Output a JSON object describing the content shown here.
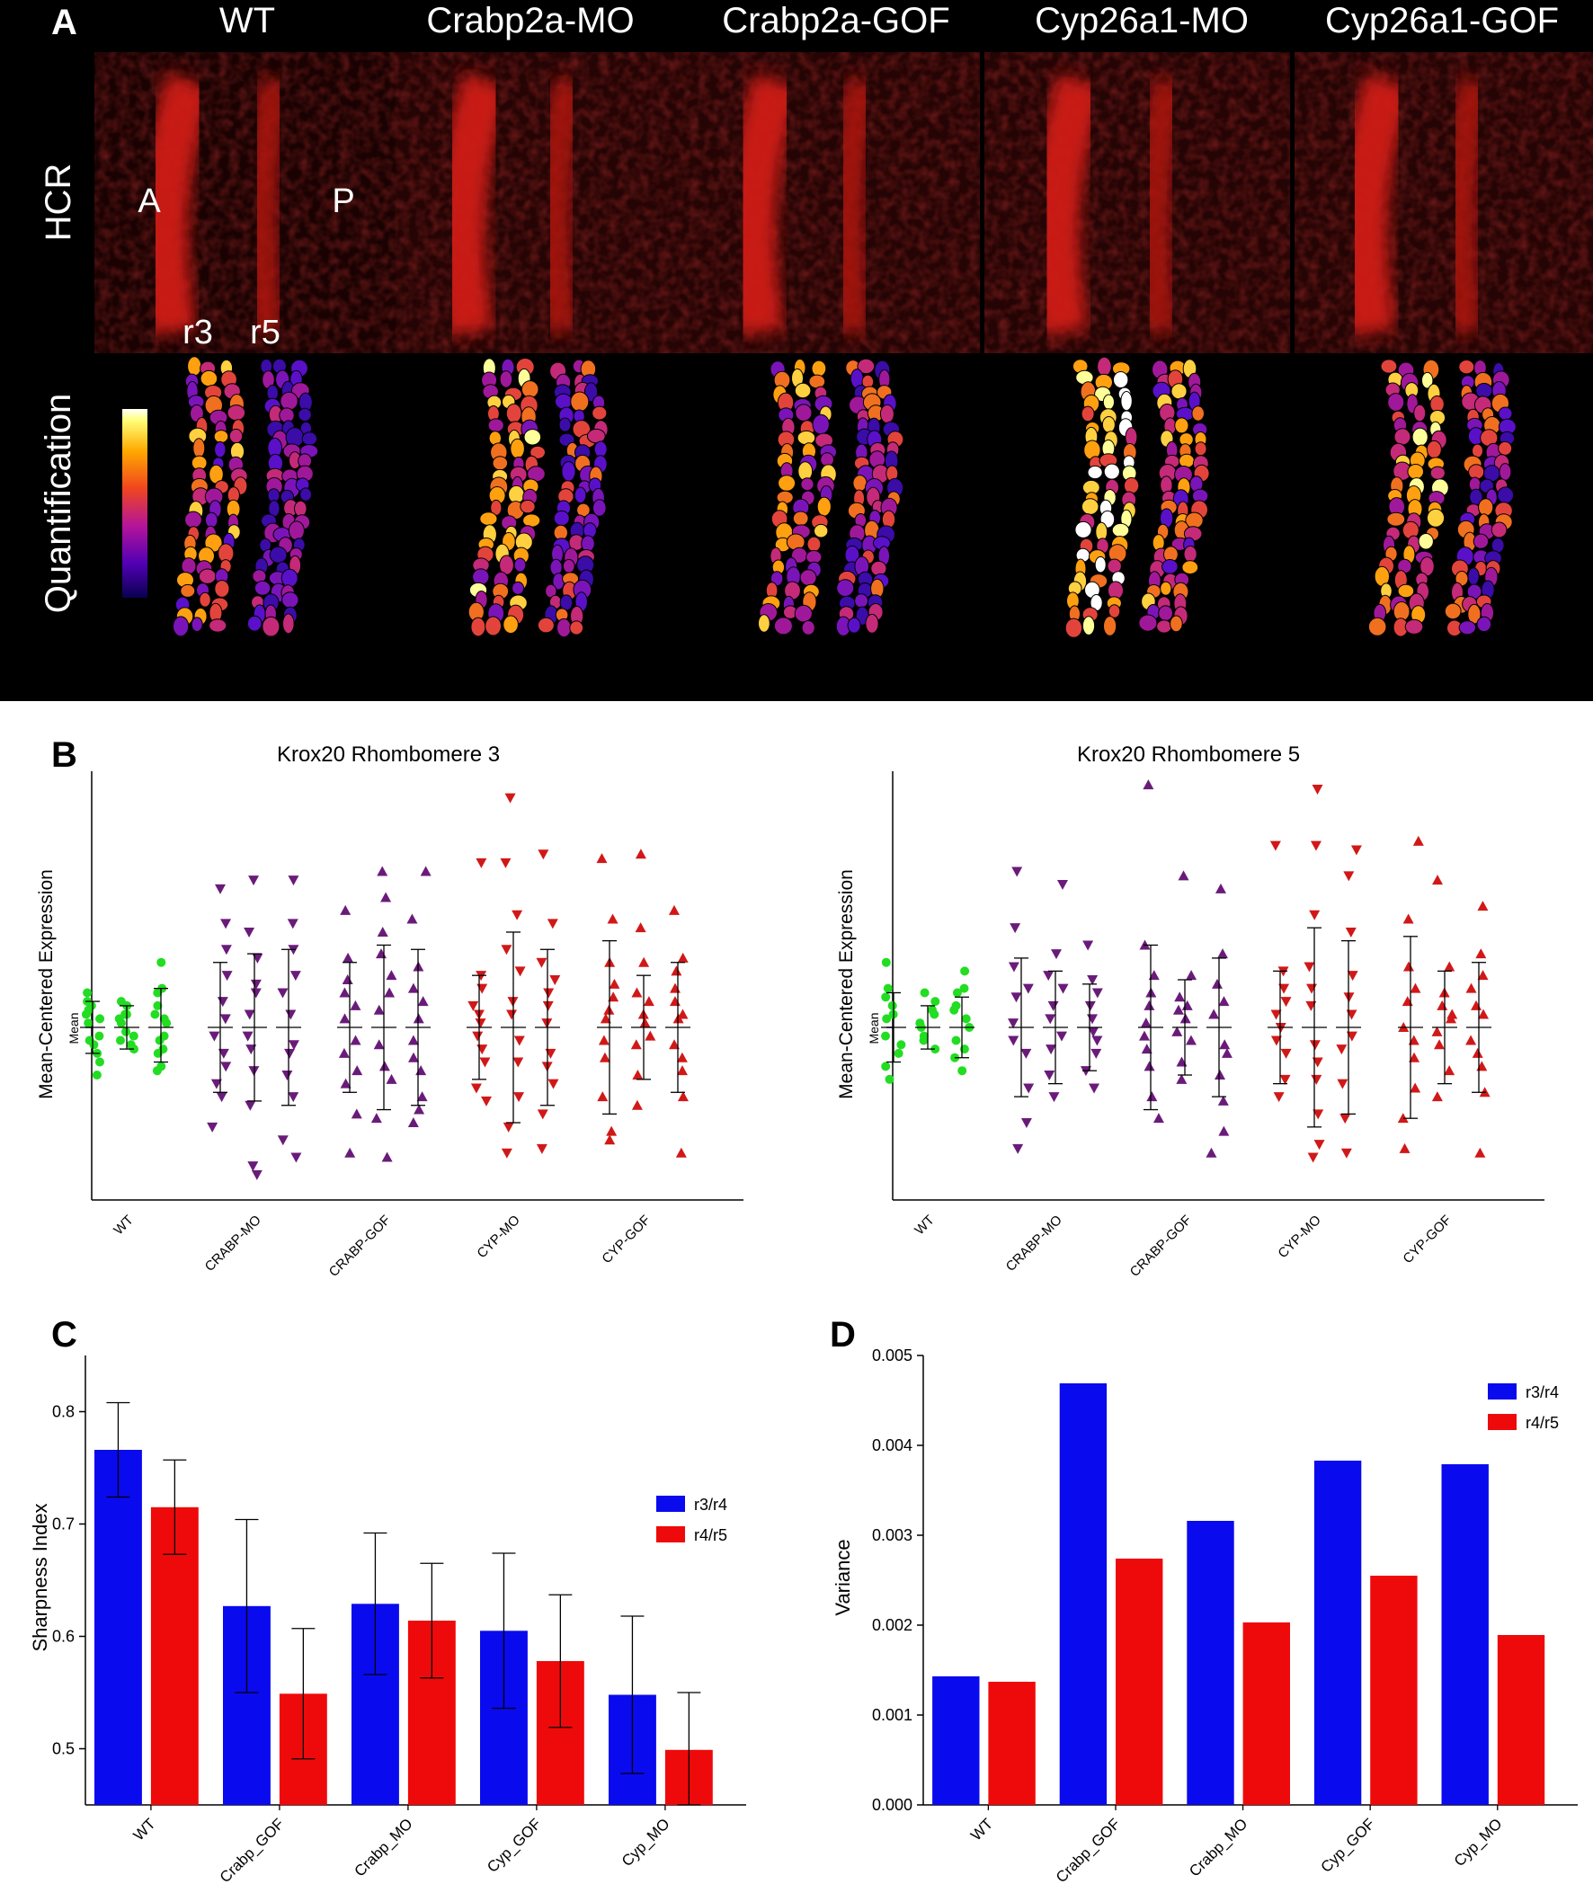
{
  "panel_a": {
    "letter": "A",
    "conditions": [
      "WT",
      "Crabp2a-MO",
      "Crabp2a-GOF",
      "Cyp26a1-MO",
      "Cyp26a1-GOF"
    ],
    "row_labels": [
      "HCR",
      "Quantification"
    ],
    "orientation": {
      "anterior": "A",
      "posterior": "P"
    },
    "rhombomere_labels": [
      "r3",
      "r5"
    ]
  },
  "panel_b": {
    "letter": "B",
    "chart_data": [
      {
        "type": "scatter",
        "title": "Krox20 Rhombomere 3",
        "ylabel": "Mean-Centered Expression",
        "ytick": "Mean",
        "categories": [
          "WT",
          "CRABP-MO",
          "CRABP-GOF",
          "CYP-MO",
          "CYP-GOF"
        ],
        "series": [
          {
            "group": "WT",
            "color": "#22dd22",
            "marker": "circle",
            "sd": [
              [
                -0.6,
                0.6
              ],
              [
                -0.5,
                0.5
              ],
              [
                -0.8,
                0.9
              ]
            ],
            "values": [
              [
                0.8,
                0.5,
                0.2,
                -0.3,
                -0.6,
                -1.1,
                0.3,
                -0.2,
                0.6,
                -0.8,
                0.1,
                -0.4,
                0.4
              ],
              [
                0.6,
                0.3,
                -0.1,
                -0.3,
                0.2,
                -0.5,
                0.5,
                -0.2,
                0.1,
                -0.4,
                0.3
              ],
              [
                1.5,
                0.8,
                0.3,
                -0.3,
                -0.9,
                -1.0,
                0.5,
                0.1,
                -0.6,
                0.9,
                -0.2,
                0.2,
                -0.5
              ]
            ]
          },
          {
            "group": "CRABP-MO",
            "color": "#6a1b7a",
            "marker": "triangle-down",
            "sd": [
              [
                -1.5,
                1.5
              ],
              [
                -1.7,
                1.7
              ],
              [
                -1.8,
                1.8
              ]
            ],
            "values": [
              [
                3.2,
                2.4,
                1.2,
                0.6,
                -0.2,
                -0.9,
                -1.6,
                -2.3,
                0.2,
                -0.6,
                1.8,
                -1.3
              ],
              [
                3.4,
                2.2,
                1.0,
                0.3,
                -0.5,
                -1.8,
                -3.2,
                -3.4,
                0.8,
                -1.0,
                1.6,
                -0.2
              ],
              [
                3.4,
                1.8,
                0.8,
                -0.4,
                -1.1,
                -2.6,
                -3.0,
                1.2,
                -0.6,
                0.3,
                -1.6,
                2.4
              ]
            ]
          },
          {
            "group": "CRABP-GOF",
            "color": "#6a1b7a",
            "marker": "triangle-up",
            "sd": [
              [
                -1.5,
                1.5
              ],
              [
                -1.9,
                1.9
              ],
              [
                -1.8,
                1.8
              ]
            ],
            "values": [
              [
                2.7,
                1.6,
                0.8,
                0.2,
                -0.6,
                -1.3,
                -2.0,
                -2.9,
                1.1,
                -0.3,
                0.5,
                -1.0
              ],
              [
                3.6,
                3.0,
                2.2,
                1.2,
                0.4,
                -0.4,
                -1.2,
                -2.1,
                -3.0,
                0.8,
                -0.9,
                1.7
              ],
              [
                3.6,
                2.5,
                1.4,
                0.6,
                -0.3,
                -1.0,
                -1.6,
                -2.2,
                0.9,
                -0.7,
                0.2,
                -1.9
              ]
            ]
          },
          {
            "group": "CYP-MO",
            "color": "#d11818",
            "marker": "triangle-down",
            "sd": [
              [
                -1.2,
                1.2
              ],
              [
                -2.2,
                2.2
              ],
              [
                -1.8,
                1.8
              ]
            ],
            "values": [
              [
                3.8,
                1.2,
                0.5,
                -0.2,
                -0.8,
                -1.4,
                -1.7,
                0.9,
                0.1,
                -0.5,
                0.3
              ],
              [
                5.3,
                3.8,
                2.6,
                1.3,
                0.3,
                -0.8,
                -1.6,
                -2.3,
                -2.9,
                0.6,
                -0.3,
                1.8
              ],
              [
                4.0,
                2.4,
                1.5,
                0.8,
                0.1,
                -0.6,
                -1.3,
                -2.0,
                -2.8,
                0.5,
                -0.9,
                1.1
              ]
            ]
          },
          {
            "group": "CYP-GOF",
            "color": "#d11818",
            "marker": "triangle-up",
            "sd": [
              [
                -2.0,
                2.0
              ],
              [
                -1.2,
                1.2
              ],
              [
                -1.5,
                1.5
              ]
            ],
            "values": [
              [
                3.9,
                2.5,
                1.5,
                0.7,
                0.2,
                -0.7,
                -1.6,
                -2.4,
                -2.6,
                0.4,
                -0.3,
                1.0
              ],
              [
                4.0,
                2.3,
                1.5,
                0.8,
                0.3,
                -0.4,
                -1.1,
                -1.8,
                0.6,
                -0.2,
                0.1
              ],
              [
                2.7,
                1.6,
                0.9,
                0.3,
                -0.4,
                -1.0,
                -1.6,
                -2.9,
                0.6,
                -0.7,
                0.2,
                1.3
              ]
            ]
          }
        ]
      },
      {
        "type": "scatter",
        "title": "Krox20 Rhombomere 5",
        "ylabel": "Mean-Centered Expression",
        "ytick": "Mean",
        "categories": [
          "WT",
          "CRABP-MO",
          "CRABP-GOF",
          "CYP-MO",
          "CYP-GOF"
        ],
        "series": [
          {
            "group": "WT",
            "color": "#22dd22",
            "marker": "circle",
            "sd": [
              [
                -0.8,
                0.8
              ],
              [
                -0.5,
                0.5
              ],
              [
                -0.7,
                0.7
              ]
            ],
            "values": [
              [
                1.5,
                0.9,
                0.5,
                0.2,
                -0.2,
                -0.6,
                -1.2,
                0.3,
                -0.4,
                0.7,
                -0.9
              ],
              [
                0.8,
                0.4,
                0.1,
                -0.2,
                -0.5,
                0.3,
                -0.3,
                0.6,
                0.0
              ],
              [
                1.3,
                0.8,
                0.4,
                0.0,
                -0.3,
                -0.7,
                -1.0,
                0.5,
                -0.5,
                0.2,
                0.9
              ]
            ]
          },
          {
            "group": "CRABP-MO",
            "color": "#6a1b7a",
            "marker": "triangle-down",
            "sd": [
              [
                -1.6,
                1.6
              ],
              [
                -1.3,
                1.3
              ],
              [
                -1.0,
                1.0
              ]
            ],
            "values": [
              [
                3.6,
                2.3,
                1.4,
                0.7,
                0.1,
                -0.6,
                -1.4,
                -2.2,
                -2.8,
                0.9,
                -0.3
              ],
              [
                3.3,
                1.7,
                0.9,
                0.2,
                -0.5,
                -1.1,
                -1.6,
                0.5,
                -0.2,
                1.2
              ],
              [
                1.9,
                1.1,
                0.5,
                -0.1,
                -0.6,
                -1.0,
                -1.4,
                0.8,
                0.2,
                -0.3
              ]
            ]
          },
          {
            "group": "CRABP-GOF",
            "color": "#6a1b7a",
            "marker": "triangle-up",
            "sd": [
              [
                -1.9,
                1.9
              ],
              [
                -1.1,
                1.1
              ],
              [
                -1.6,
                1.6
              ]
            ],
            "values": [
              [
                5.6,
                1.9,
                1.2,
                0.5,
                -0.2,
                -0.9,
                -1.6,
                -2.1,
                0.8,
                -0.5,
                0.1
              ],
              [
                3.5,
                1.2,
                0.7,
                0.2,
                -0.3,
                -0.8,
                -1.2,
                0.5,
                -0.1,
                0.4
              ],
              [
                3.2,
                1.7,
                1.0,
                0.3,
                -0.4,
                -1.1,
                -1.7,
                -2.4,
                -2.9,
                0.6,
                -0.6
              ]
            ]
          },
          {
            "group": "CYP-MO",
            "color": "#d11818",
            "marker": "triangle-down",
            "sd": [
              [
                -1.3,
                1.3
              ],
              [
                -2.3,
                2.3
              ],
              [
                -2.0,
                2.0
              ]
            ],
            "values": [
              [
                4.2,
                1.3,
                0.6,
                0.0,
                -0.6,
                -1.2,
                -1.6,
                0.9,
                0.3,
                -0.3
              ],
              [
                5.5,
                4.2,
                2.6,
                1.4,
                0.5,
                -0.4,
                -1.2,
                -2.0,
                -2.7,
                -3.0,
                0.9,
                -0.8
              ],
              [
                4.1,
                3.5,
                2.2,
                1.2,
                0.3,
                -0.5,
                -1.3,
                -2.1,
                -2.9,
                0.7,
                -0.2
              ]
            ]
          },
          {
            "group": "CYP-GOF",
            "color": "#d11818",
            "marker": "triangle-up",
            "sd": [
              [
                -2.1,
                2.1
              ],
              [
                -1.3,
                1.3
              ],
              [
                -1.5,
                1.5
              ]
            ],
            "values": [
              [
                4.3,
                2.5,
                1.4,
                0.6,
                0.0,
                -0.7,
                -1.4,
                -2.1,
                -2.8,
                0.9,
                -0.3
              ],
              [
                3.4,
                1.4,
                0.8,
                0.2,
                -0.4,
                -1.0,
                -1.6,
                0.5,
                -0.1,
                0.3
              ],
              [
                2.8,
                1.7,
                0.9,
                0.3,
                -0.3,
                -0.9,
                -1.5,
                -2.9,
                0.5,
                -0.6,
                1.2
              ]
            ]
          }
        ]
      }
    ]
  },
  "panel_c": {
    "letter": "C",
    "chart_data": {
      "type": "bar",
      "ylabel": "Sharpness Index",
      "categories": [
        "WT",
        "Crabp_GOF",
        "Crabp_MO",
        "Cyp_GOF",
        "Cyp_MO"
      ],
      "ylim": [
        0.45,
        0.85
      ],
      "yticks": [
        "0.5",
        "0.6",
        "0.7",
        "0.8"
      ],
      "legend_position": "top-right",
      "series": [
        {
          "name": "r3/r4",
          "color": "#0a0aee",
          "values": [
            0.766,
            0.627,
            0.629,
            0.605,
            0.548
          ],
          "error": [
            0.042,
            0.077,
            0.063,
            0.069,
            0.07
          ]
        },
        {
          "name": "r4/r5",
          "color": "#ee0a0a",
          "values": [
            0.715,
            0.549,
            0.614,
            0.578,
            0.499
          ],
          "error": [
            0.042,
            0.058,
            0.051,
            0.059,
            0.051
          ]
        }
      ]
    }
  },
  "panel_d": {
    "letter": "D",
    "chart_data": {
      "type": "bar",
      "ylabel": "Variance",
      "categories": [
        "WT",
        "Crabp_GOF",
        "Crabp_MO",
        "Cyp_GOF",
        "Cyp_MO"
      ],
      "ylim": [
        0,
        0.005
      ],
      "yticks": [
        "0.000",
        "0.001",
        "0.002",
        "0.003",
        "0.004",
        "0.005"
      ],
      "legend_position": "top-right",
      "series": [
        {
          "name": "r3/r4",
          "color": "#0a0aee",
          "values": [
            0.00143,
            0.00469,
            0.00316,
            0.00383,
            0.00379
          ]
        },
        {
          "name": "r4/r5",
          "color": "#ee0a0a",
          "values": [
            0.00137,
            0.00274,
            0.00203,
            0.00255,
            0.00189
          ]
        }
      ]
    }
  }
}
